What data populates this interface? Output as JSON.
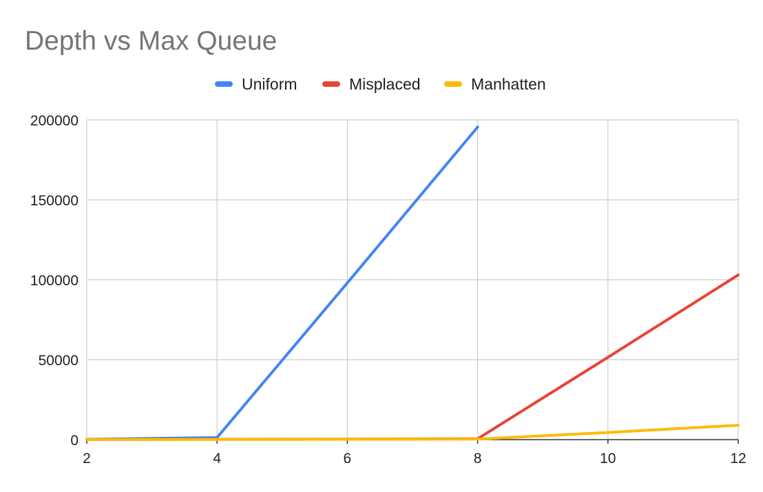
{
  "chart_data": {
    "type": "line",
    "title": "Depth vs Max Queue",
    "xlabel": "",
    "ylabel": "",
    "x": [
      2,
      4,
      6,
      8,
      10,
      12
    ],
    "xticks": [
      "2",
      "4",
      "6",
      "8",
      "10",
      "12"
    ],
    "yticks": [
      "0",
      "50000",
      "100000",
      "150000",
      "200000"
    ],
    "ytick_values": [
      0,
      50000,
      100000,
      150000,
      200000
    ],
    "xlim": [
      2,
      12
    ],
    "ylim": [
      0,
      200000
    ],
    "grid": true,
    "legend_position": "top-center",
    "series": [
      {
        "name": "Uniform",
        "color": "#4285F4",
        "points": [
          [
            2,
            200
          ],
          [
            4,
            1300
          ],
          [
            6,
            98000
          ],
          [
            8,
            195500
          ]
        ]
      },
      {
        "name": "Misplaced",
        "color": "#EA4335",
        "points": [
          [
            2,
            100
          ],
          [
            4,
            200
          ],
          [
            6,
            300
          ],
          [
            8,
            500
          ],
          [
            10,
            51500
          ],
          [
            12,
            103000
          ]
        ]
      },
      {
        "name": "Manhatten",
        "color": "#FBBC04",
        "points": [
          [
            2,
            100
          ],
          [
            4,
            150
          ],
          [
            6,
            200
          ],
          [
            8,
            300
          ],
          [
            10,
            4500
          ],
          [
            12,
            9000
          ]
        ]
      }
    ]
  }
}
